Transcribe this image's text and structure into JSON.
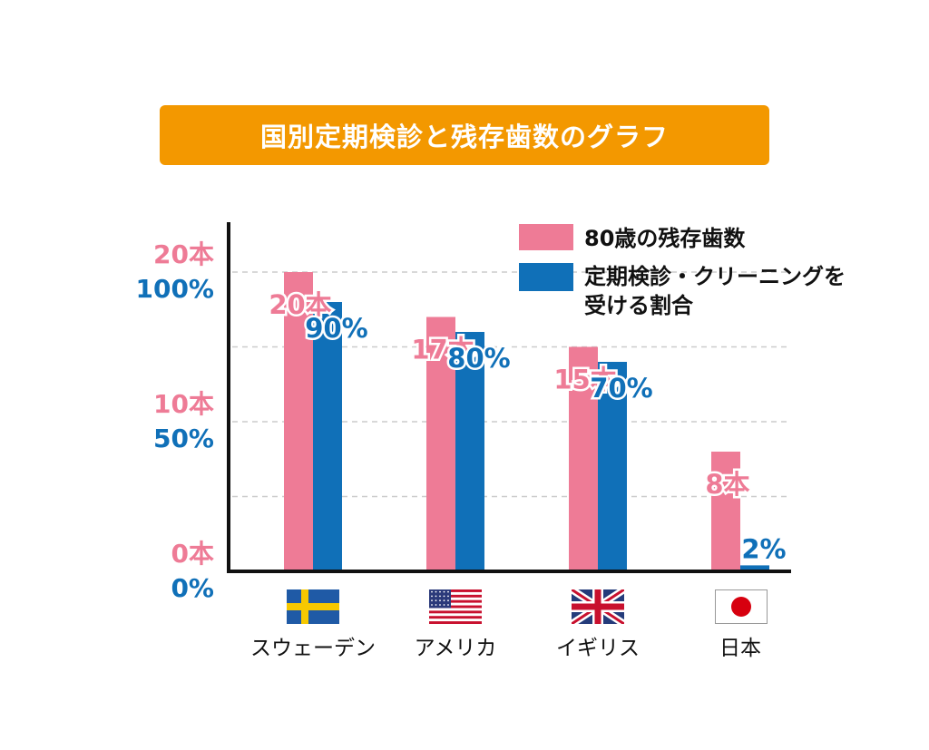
{
  "title": "国別定期検診と残存歯数のグラフ",
  "colors": {
    "teeth": "#ee7b96",
    "rate": "#1070b8",
    "title_bg": "#f39800",
    "axis": "#111111",
    "grid": "#cccccc"
  },
  "y_axis": {
    "teeth_ticks": [
      "20本",
      "10本",
      "0本"
    ],
    "rate_ticks": [
      "100%",
      "50%",
      "0%"
    ]
  },
  "legend": [
    {
      "label": "80歳の残存歯数",
      "color": "#ee7b96"
    },
    {
      "label_lines": [
        "定期検診・クリーニングを",
        "受ける割合"
      ],
      "color": "#1070b8"
    }
  ],
  "chart_data": {
    "type": "bar",
    "categories": [
      "スウェーデン",
      "アメリカ",
      "イギリス",
      "日本"
    ],
    "series": [
      {
        "name": "80歳の残存歯数",
        "values": [
          20,
          17,
          15,
          8
        ],
        "labels": [
          "20本",
          "17本",
          "15本",
          "8本"
        ],
        "ylim": [
          0,
          20
        ]
      },
      {
        "name": "定期検診・クリーニングを受ける割合",
        "values": [
          90,
          80,
          70,
          2
        ],
        "labels": [
          "90%",
          "80%",
          "70%",
          "2%"
        ],
        "ylim": [
          0,
          100
        ]
      }
    ],
    "flags": [
      "sweden-flag",
      "usa-flag",
      "uk-flag",
      "japan-flag"
    ],
    "grid": true,
    "legend_position": "top-right"
  }
}
